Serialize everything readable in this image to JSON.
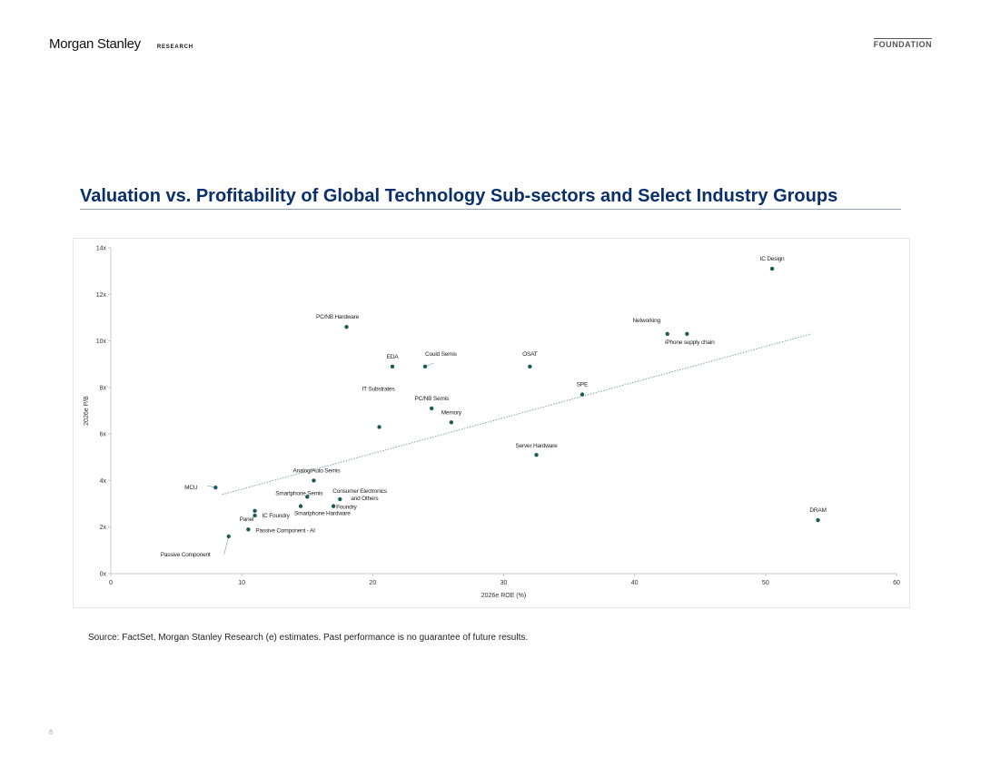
{
  "header": {
    "brand": "Morgan Stanley",
    "brand_sub": "RESEARCH",
    "series_tag": "FOUNDATION"
  },
  "footer": {
    "source": "Source: FactSet, Morgan Stanley Research (e) estimates. Past performance is no guarantee of future results.",
    "page_number": "8"
  },
  "chart_data": {
    "type": "scatter",
    "title": "Valuation vs. Profitability of Global Technology Sub-sectors and Select Industry Groups",
    "xlabel": "2026e ROE (%)",
    "ylabel": "2026e P/B",
    "xlim": [
      0,
      60
    ],
    "ylim": [
      0,
      14
    ],
    "xticks": [
      "0",
      "10",
      "20",
      "30",
      "40",
      "50",
      "60"
    ],
    "yticks": [
      "0x",
      "2x",
      "4x",
      "6x",
      "8x",
      "10x",
      "12x",
      "14x"
    ],
    "grid": false,
    "colors": {
      "marker": "#1e5a5a",
      "trendline": "#7aa7a7",
      "axis": "#c8c8c8"
    },
    "trendline": {
      "x": [
        8.5,
        53.5
      ],
      "y": [
        3.4,
        10.3
      ]
    },
    "points": [
      {
        "label": "IC Design",
        "x": 50.5,
        "y": 13.1
      },
      {
        "label": "PC/NB Hardware",
        "x": 18.0,
        "y": 10.6
      },
      {
        "label": "Networking",
        "x": 42.5,
        "y": 10.3
      },
      {
        "label": "iPhone supply chain",
        "x": 44.0,
        "y": 10.3
      },
      {
        "label": "EDA",
        "x": 21.5,
        "y": 8.9
      },
      {
        "label": "Could Semis",
        "x": 24.0,
        "y": 8.9
      },
      {
        "label": "OSAT",
        "x": 32.0,
        "y": 8.9
      },
      {
        "label": "SPE",
        "x": 36.0,
        "y": 7.7
      },
      {
        "label": "IT Substrates",
        "x": 20.5,
        "y": 6.3
      },
      {
        "label": "PC/NB Semis",
        "x": 24.5,
        "y": 7.1
      },
      {
        "label": "Memory",
        "x": 26.0,
        "y": 6.5
      },
      {
        "label": "Server Hardware",
        "x": 32.5,
        "y": 5.1
      },
      {
        "label": "MCU",
        "x": 8.0,
        "y": 3.7
      },
      {
        "label": "Analog/Auto Semis",
        "x": 15.5,
        "y": 4.0
      },
      {
        "label": "Smartphone Semis",
        "x": 15.0,
        "y": 3.3
      },
      {
        "label": "Consumer Electronics and Others",
        "x": 17.5,
        "y": 3.2
      },
      {
        "label": "Foundry",
        "x": 17.0,
        "y": 2.9
      },
      {
        "label": "Smartphone Hardware",
        "x": 14.5,
        "y": 2.9
      },
      {
        "label": "IC Foundry",
        "x": 11.0,
        "y": 2.7
      },
      {
        "label": "Panel",
        "x": 11.0,
        "y": 2.5
      },
      {
        "label": "Passive Component - AI",
        "x": 10.5,
        "y": 1.9
      },
      {
        "label": "Passive Component",
        "x": 9.0,
        "y": 1.6
      },
      {
        "label": "DRAM",
        "x": 54.0,
        "y": 2.3
      }
    ]
  }
}
